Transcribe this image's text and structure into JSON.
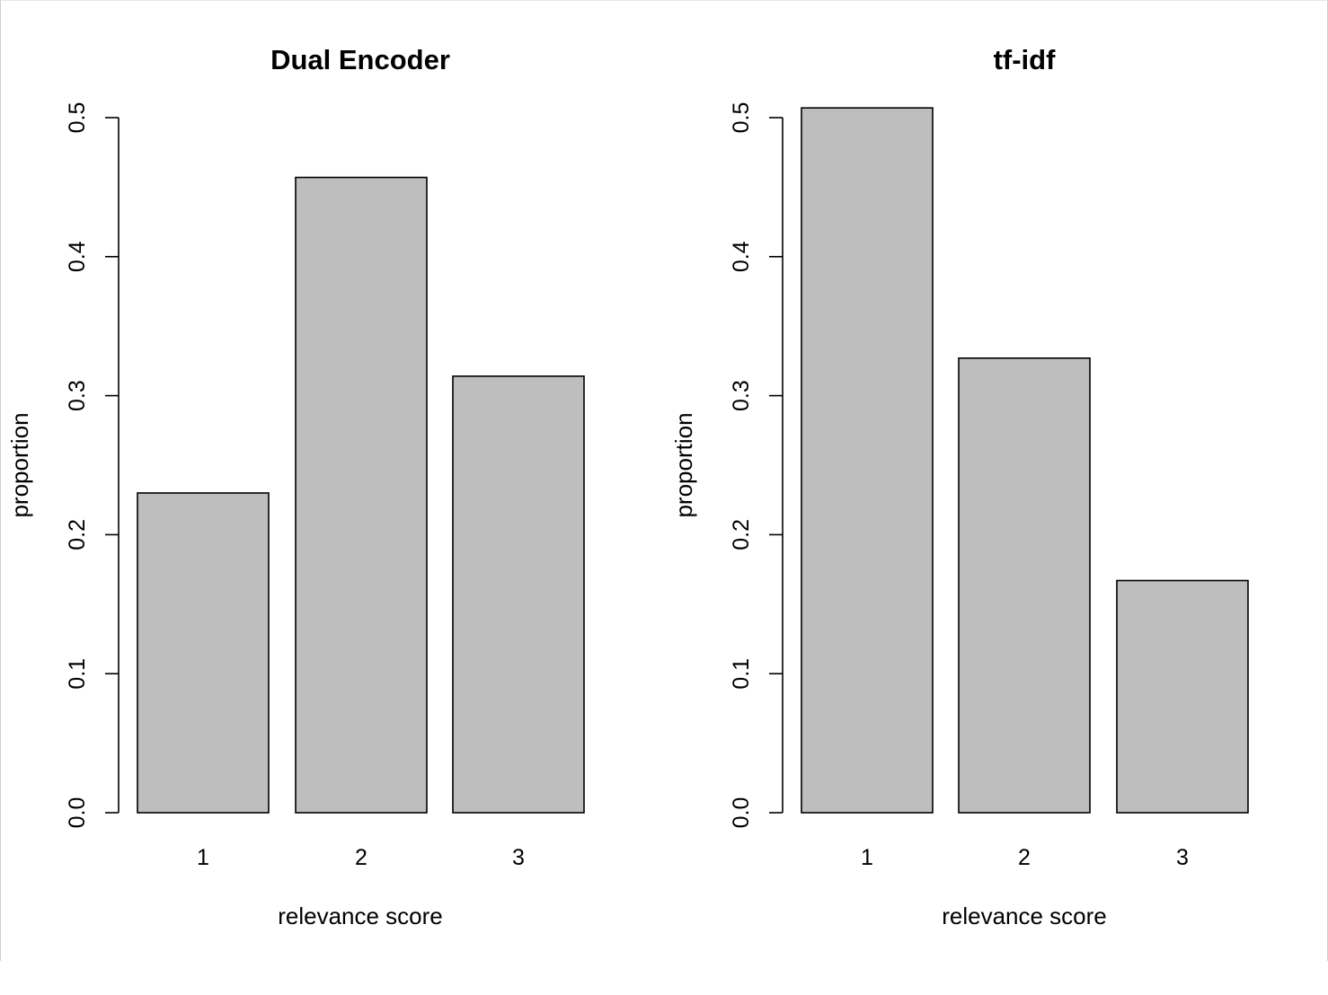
{
  "chart_data": [
    {
      "type": "bar",
      "title": "Dual Encoder",
      "xlabel": "relevance score",
      "ylabel": "proportion",
      "categories": [
        "1",
        "2",
        "3"
      ],
      "values": [
        0.23,
        0.457,
        0.314
      ],
      "ylim": [
        0,
        0.5
      ],
      "yticks": [
        "0.0",
        "0.1",
        "0.2",
        "0.3",
        "0.4",
        "0.5"
      ],
      "grid": false,
      "bar_color": "#bebebe"
    },
    {
      "type": "bar",
      "title": "tf-idf",
      "xlabel": "relevance score",
      "ylabel": "proportion",
      "categories": [
        "1",
        "2",
        "3"
      ],
      "values": [
        0.507,
        0.327,
        0.167
      ],
      "ylim": [
        0,
        0.5
      ],
      "yticks": [
        "0.0",
        "0.1",
        "0.2",
        "0.3",
        "0.4",
        "0.5"
      ],
      "grid": false,
      "bar_color": "#bebebe"
    }
  ]
}
